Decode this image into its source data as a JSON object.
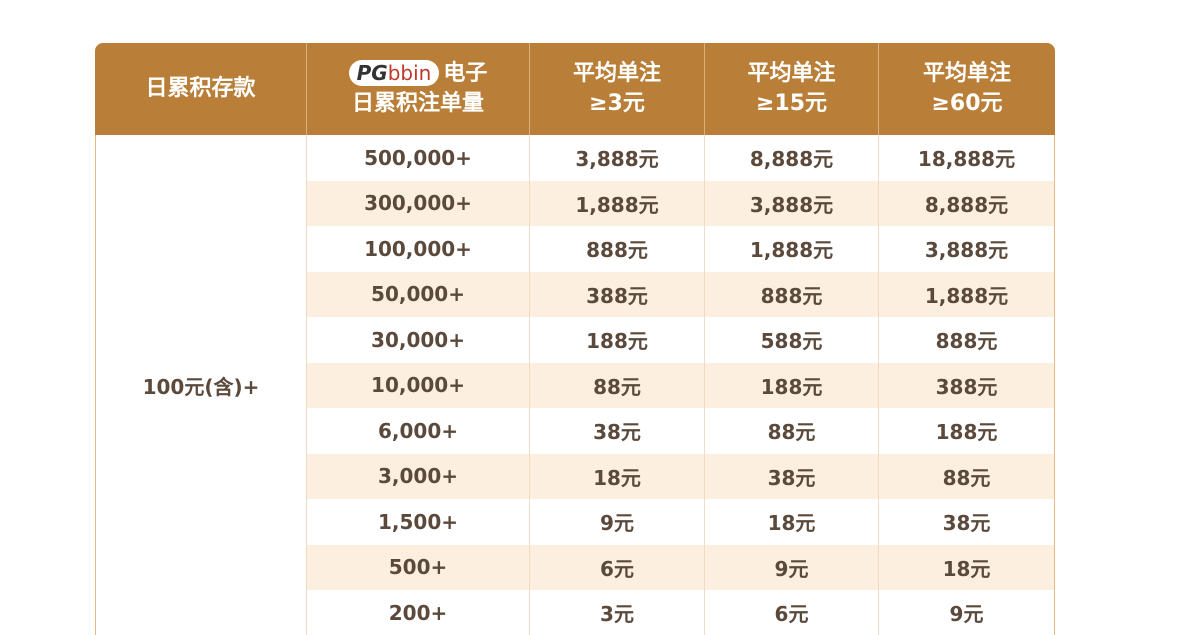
{
  "header": {
    "deposit": "日累积存款",
    "logo": [
      "PG",
      "bbin"
    ],
    "game": "电子",
    "volume": "日累积注单量",
    "tiers": [
      {
        "line1": "平均单注",
        "line2": "≥3元"
      },
      {
        "line1": "平均单注",
        "line2": "≥15元"
      },
      {
        "line1": "平均单注",
        "line2": "≥60元"
      }
    ]
  },
  "table": {
    "deposit_value": "100元(含)+",
    "rows": [
      {
        "volume": "500,000+",
        "rewards": [
          "3,888元",
          "8,888元",
          "18,888元"
        ]
      },
      {
        "volume": "300,000+",
        "rewards": [
          "1,888元",
          "3,888元",
          "8,888元"
        ]
      },
      {
        "volume": "100,000+",
        "rewards": [
          "888元",
          "1,888元",
          "3,888元"
        ]
      },
      {
        "volume": "50,000+",
        "rewards": [
          "388元",
          "888元",
          "1,888元"
        ]
      },
      {
        "volume": "30,000+",
        "rewards": [
          "188元",
          "588元",
          "888元"
        ]
      },
      {
        "volume": "10,000+",
        "rewards": [
          "88元",
          "188元",
          "388元"
        ]
      },
      {
        "volume": "6,000+",
        "rewards": [
          "38元",
          "88元",
          "188元"
        ]
      },
      {
        "volume": "3,000+",
        "rewards": [
          "18元",
          "38元",
          "88元"
        ]
      },
      {
        "volume": "1,500+",
        "rewards": [
          "9元",
          "18元",
          "38元"
        ]
      },
      {
        "volume": "500+",
        "rewards": [
          "6元",
          "9元",
          "18元"
        ]
      },
      {
        "volume": "200+",
        "rewards": [
          "3元",
          "6元",
          "9元"
        ]
      }
    ]
  }
}
